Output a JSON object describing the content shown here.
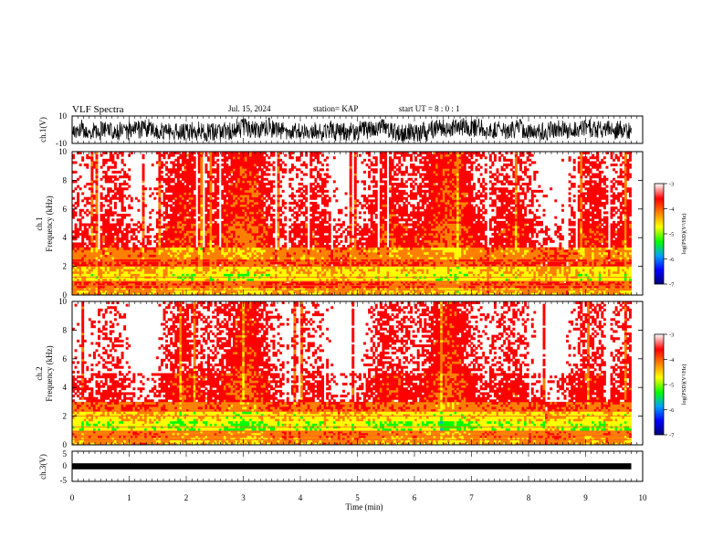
{
  "header": {
    "title": "VLF Spectra",
    "date": "Jul. 15, 2024",
    "station": "station= KAP",
    "start": "start  UT =   8 : 0  : 1"
  },
  "chart_data": [
    {
      "type": "line",
      "name": "ch1-waveform",
      "ylabel": "ch.1(V)",
      "ylim": [
        -10,
        10
      ],
      "yticks": [
        "10",
        "-10"
      ],
      "xlim": [
        0,
        10
      ],
      "data_extent_min": [
        0,
        9.8
      ],
      "description_values": {
        "amplitude_range_V": [
          -9,
          9
        ]
      }
    },
    {
      "type": "heatmap",
      "name": "ch1-spectrogram",
      "ylabel": "ch.1\nFrequency (kHz)",
      "ylabel_lines": [
        "ch.1",
        "Frequency (kHz)"
      ],
      "ylim": [
        0,
        10
      ],
      "yticks": [
        "0",
        "2",
        "4",
        "6",
        "8",
        "10"
      ],
      "xlim": [
        0,
        10
      ],
      "data_extent_min": [
        0,
        9.8
      ],
      "colorbar": {
        "label": "log(PSD)(V²/Hz)",
        "range": [
          -7,
          -3
        ],
        "ticks": [
          "-3",
          "-4",
          "-5",
          "-6",
          "-7"
        ],
        "colormap": [
          "#00007f",
          "#0000ff",
          "#00a0ff",
          "#00ff00",
          "#ffff00",
          "#ff8000",
          "#ff0000",
          "#ffffff"
        ]
      },
      "band_log_psd": [
        {
          "f": [
            0.0,
            0.5
          ],
          "value": -4.4
        },
        {
          "f": [
            0.5,
            1.0
          ],
          "value": -3.9
        },
        {
          "f": [
            1.0,
            1.5
          ],
          "value": -4.7
        },
        {
          "f": [
            1.5,
            2.0
          ],
          "value": -4.5
        },
        {
          "f": [
            2.0,
            2.5
          ],
          "value": -3.8
        },
        {
          "f": [
            2.5,
            3.2
          ],
          "value": -4.2
        },
        {
          "f": [
            3.2,
            5.0
          ],
          "value": -3.6
        },
        {
          "f": [
            5.0,
            7.5
          ],
          "value": -3.4
        },
        {
          "f": [
            7.5,
            10.0
          ],
          "value": -3.3
        }
      ]
    },
    {
      "type": "heatmap",
      "name": "ch2-spectrogram",
      "ylabel": "ch.2\nFrequency (kHz)",
      "ylabel_lines": [
        "ch.2",
        "Frequency (kHz)"
      ],
      "ylim": [
        0,
        10
      ],
      "yticks": [
        "0",
        "2",
        "4",
        "6",
        "8",
        "10"
      ],
      "xlim": [
        0,
        10
      ],
      "data_extent_min": [
        0,
        9.8
      ],
      "colorbar": {
        "label": "log(PSD)(V²/Hz)",
        "range": [
          -7,
          -3
        ],
        "ticks": [
          "-3",
          "-4",
          "-5",
          "-6",
          "-7"
        ],
        "colormap": [
          "#00007f",
          "#0000ff",
          "#00a0ff",
          "#00ff00",
          "#ffff00",
          "#ff8000",
          "#ff0000",
          "#ffffff"
        ]
      },
      "band_log_psd": [
        {
          "f": [
            0.0,
            0.5
          ],
          "value": -4.3
        },
        {
          "f": [
            0.5,
            1.0
          ],
          "value": -4.1
        },
        {
          "f": [
            1.0,
            1.6
          ],
          "value": -4.9
        },
        {
          "f": [
            1.6,
            2.2
          ],
          "value": -4.6
        },
        {
          "f": [
            2.2,
            3.0
          ],
          "value": -4.0
        },
        {
          "f": [
            3.0,
            5.0
          ],
          "value": -3.5
        },
        {
          "f": [
            5.0,
            7.5
          ],
          "value": -3.25
        },
        {
          "f": [
            7.5,
            10.0
          ],
          "value": -3.2
        }
      ]
    },
    {
      "type": "line",
      "name": "ch3-waveform",
      "ylabel": "ch.3(V)",
      "ylim": [
        -5,
        5
      ],
      "yticks": [
        "5",
        "0",
        "-5"
      ],
      "xlim": [
        0,
        10
      ],
      "data_extent_min": [
        0,
        9.8
      ],
      "description_values": {
        "amplitude_range_V": [
          -1,
          1
        ]
      }
    }
  ],
  "xaxis": {
    "label": "Time (min)",
    "ticks": [
      "0",
      "1",
      "2",
      "3",
      "4",
      "5",
      "6",
      "7",
      "8",
      "9",
      "10"
    ]
  }
}
